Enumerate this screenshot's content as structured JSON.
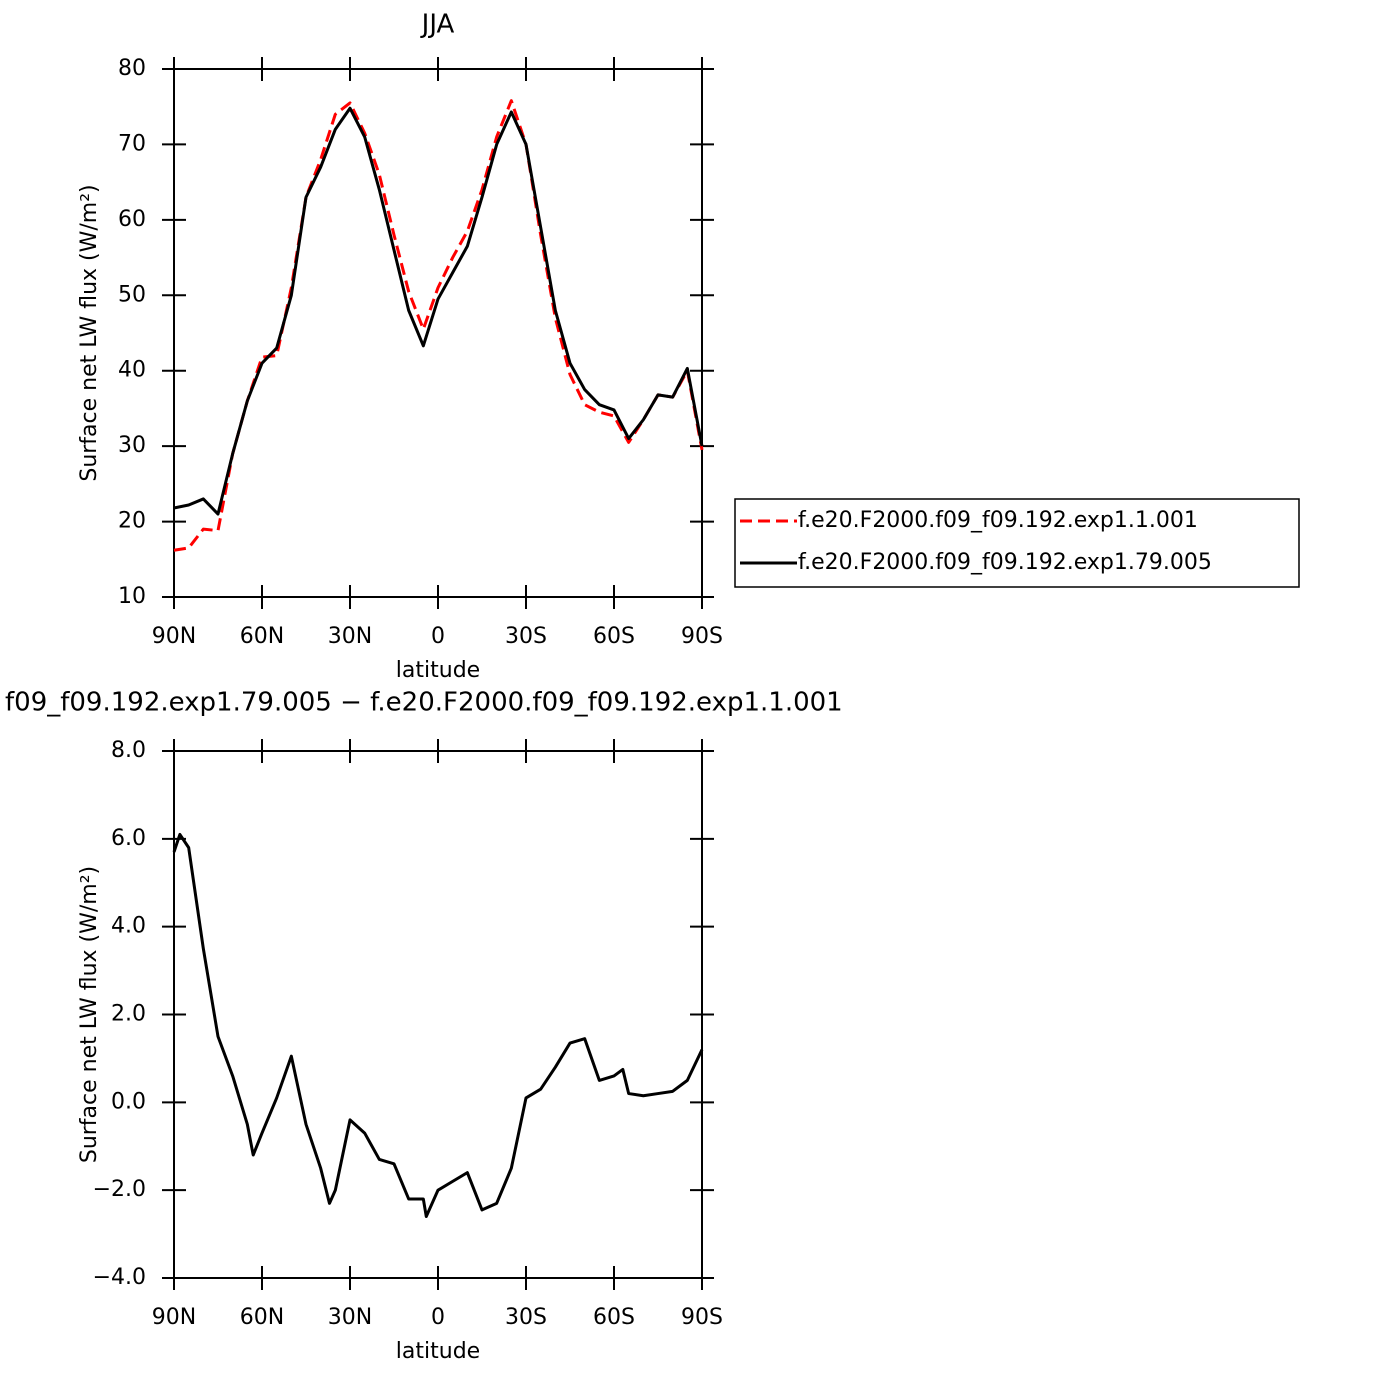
{
  "chart_data": [
    {
      "type": "line",
      "title": "JJA",
      "xlabel": "latitude",
      "ylabel": "Surface net LW flux (W/m²)",
      "x": [
        90,
        85,
        80,
        75,
        70,
        65,
        60,
        55,
        50,
        45,
        40,
        35,
        30,
        25,
        20,
        15,
        10,
        5,
        0,
        -5,
        -10,
        -15,
        -20,
        -25,
        -30,
        -35,
        -40,
        -45,
        -50,
        -55,
        -60,
        -65,
        -70,
        -75,
        -80,
        -85,
        -90
      ],
      "series": [
        {
          "name": "f.e20.F2000.f09_f09.192.exp1.1.001",
          "color": "#ff0000",
          "style": "dashed",
          "values": [
            16.2,
            16.5,
            19,
            18.8,
            29,
            36,
            41.8,
            42,
            51,
            63,
            68,
            74,
            75.5,
            71.5,
            66,
            58,
            50.5,
            45.5,
            51,
            55,
            58.5,
            64,
            71,
            75.8,
            70,
            58,
            47,
            39.5,
            35.5,
            34.5,
            34,
            30.5,
            33.5,
            36.8,
            36.5,
            40,
            29.5
          ]
        },
        {
          "name": "f.e20.F2000.f09_f09.192.exp1.79.005",
          "color": "#000000",
          "style": "solid",
          "values": [
            21.8,
            22.2,
            23,
            21,
            29,
            36,
            41,
            43,
            50,
            63,
            67,
            72,
            74.8,
            71,
            64,
            56,
            48,
            43.3,
            49.5,
            53,
            56.5,
            63,
            70,
            74.3,
            70,
            59,
            48,
            41,
            37.5,
            35.5,
            34.8,
            31,
            33.5,
            36.8,
            36.5,
            40.3,
            30
          ]
        }
      ],
      "xlim": [
        90,
        -90
      ],
      "xticks": [
        {
          "value": 90,
          "label": "90N"
        },
        {
          "value": 60,
          "label": "60N"
        },
        {
          "value": 30,
          "label": "30N"
        },
        0,
        {
          "value": -30,
          "label": "30S"
        },
        {
          "value": -60,
          "label": "60S"
        },
        {
          "value": -90,
          "label": "90S"
        }
      ],
      "ylim": [
        10,
        80
      ],
      "yticks": [
        10,
        20,
        30,
        40,
        50,
        60,
        70,
        80
      ],
      "legend": "outside-right"
    },
    {
      "type": "line",
      "title": "f09_f09.192.exp1.79.005 − f.e20.F2000.f09_f09.192.exp1.1.001",
      "xlabel": "latitude",
      "ylabel": "Surface net LW flux (W/m²)",
      "x": [
        90,
        88,
        85,
        80,
        75,
        70,
        65,
        63,
        60,
        55,
        50,
        45,
        40,
        37,
        35,
        30,
        25,
        20,
        15,
        10,
        5,
        4,
        0,
        -5,
        -10,
        -15,
        -20,
        -25,
        -30,
        -35,
        -40,
        -45,
        -50,
        -55,
        -60,
        -63,
        -65,
        -70,
        -75,
        -80,
        -85,
        -90
      ],
      "series": [
        {
          "color": "#000000",
          "style": "solid",
          "values": [
            5.7,
            6.1,
            5.8,
            3.5,
            1.5,
            0.6,
            -0.5,
            -1.2,
            -0.7,
            0.1,
            1.05,
            -0.5,
            -1.5,
            -2.3,
            -2.0,
            -0.4,
            -0.7,
            -1.3,
            -1.4,
            -2.2,
            -2.2,
            -2.6,
            -2.0,
            -1.8,
            -1.6,
            -2.45,
            -2.3,
            -1.5,
            0.1,
            0.3,
            0.8,
            1.35,
            1.45,
            0.5,
            0.6,
            0.75,
            0.2,
            0.15,
            0.2,
            0.25,
            0.5,
            1.2
          ]
        }
      ],
      "xlim": [
        90,
        -90
      ],
      "xticks": [
        {
          "value": 90,
          "label": "90N"
        },
        {
          "value": 60,
          "label": "60N"
        },
        {
          "value": 30,
          "label": "30N"
        },
        0,
        {
          "value": -30,
          "label": "30S"
        },
        {
          "value": -60,
          "label": "60S"
        },
        {
          "value": -90,
          "label": "90S"
        }
      ],
      "ylim": [
        -4,
        8
      ],
      "yticks": [
        {
          "value": -4,
          "label": "−4.0"
        },
        {
          "value": -2,
          "label": "−2.0"
        },
        {
          "value": 0,
          "label": "0.0"
        },
        {
          "value": 2,
          "label": "2.0"
        },
        {
          "value": 4,
          "label": "4.0"
        },
        {
          "value": 6,
          "label": "6.0"
        },
        {
          "value": 8,
          "label": "8.0"
        }
      ]
    }
  ]
}
